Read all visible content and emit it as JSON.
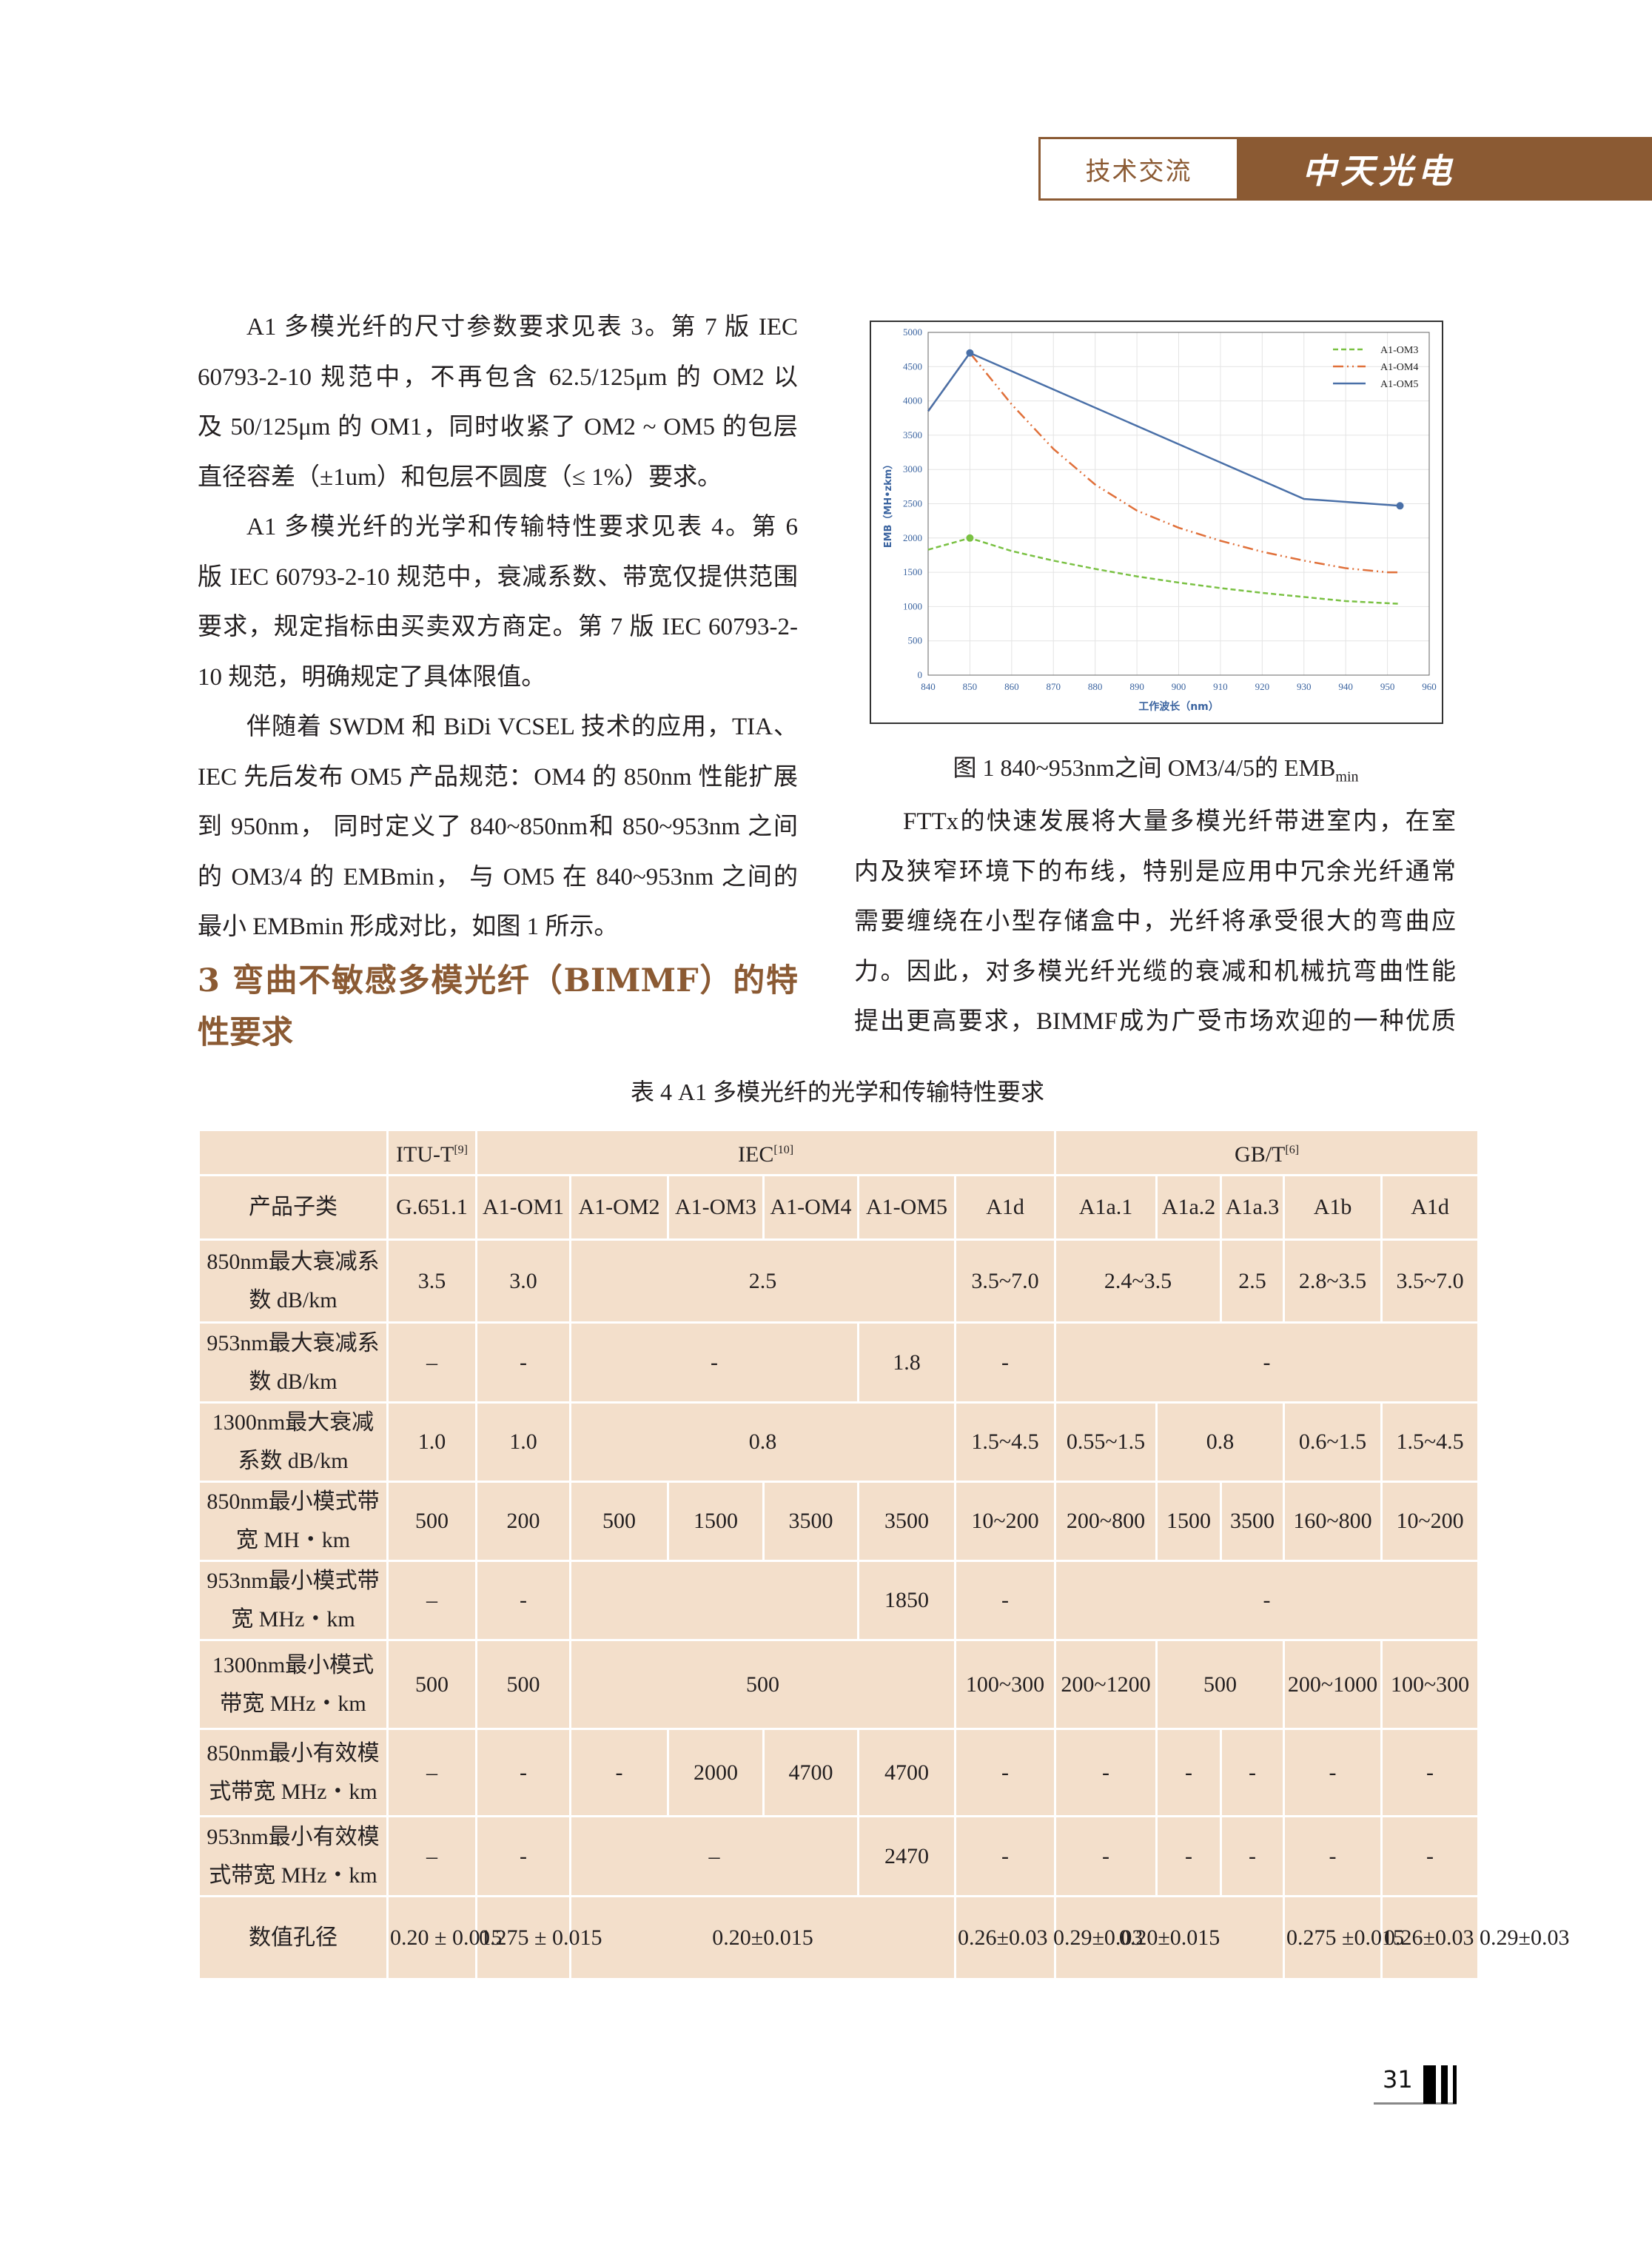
{
  "header": {
    "section_label": "技术交流",
    "logo_text": "中天光电",
    "brand_color": "#8b5a33"
  },
  "left_column": {
    "lines": [
      {
        "text": "A1 多模光纤的尺寸参数要求见表 3。第 7 版 IEC",
        "indent": true
      },
      {
        "text": "60793-2-10 规范中，不再包含 62.5/125μm 的 OM2 以"
      },
      {
        "text": "及 50/125μm 的 OM1，同时收紧了 OM2 ~ OM5 的包层"
      },
      {
        "text": "直径容差（±1um）和包层不圆度（≤ 1%）要求。",
        "last": true
      },
      {
        "text": "A1 多模光纤的光学和传输特性要求见表 4。第 6",
        "indent": true
      },
      {
        "text": "版 IEC 60793-2-10 规范中，衰减系数、带宽仅提供范围"
      },
      {
        "text": "要求，规定指标由买卖双方商定。第 7 版 IEC 60793-2-"
      },
      {
        "text": "10 规范，明确规定了具体限值。",
        "last": true
      },
      {
        "text": "伴随着 SWDM 和 BiDi VCSEL 技术的应用，TIA、",
        "indent": true
      },
      {
        "text": "IEC 先后发布 OM5 产品规范：OM4 的 850nm 性能扩展"
      },
      {
        "text": "到 950nm， 同时定义了 840~850nm和 850~953nm 之间"
      },
      {
        "text": "的 OM3/4 的 EMBmin， 与 OM5 在 840~953nm 之间的"
      },
      {
        "text": "最小 EMBmin 形成对比，如图 1 所示。",
        "last": true
      }
    ]
  },
  "section_heading": {
    "lines": [
      "3  弯曲不敏感多模光纤（BIMMF）的特",
      "性要求"
    ]
  },
  "right_column": {
    "lines": [
      {
        "text": "FTTx的快速发展将大量多模光纤带进室内，在室",
        "indent": true
      },
      {
        "text": "内及狭窄环境下的布线，特别是应用中冗余光纤通常"
      },
      {
        "text": "需要缠绕在小型存储盒中，光纤将承受很大的弯曲应"
      },
      {
        "text": "力。因此，对多模光纤光缆的衰减和机械抗弯曲性能"
      },
      {
        "text": "提出更高要求，BIMMF成为广受市场欢迎的一种优质"
      }
    ]
  },
  "figure": {
    "caption": "图 1  840~953nm之间 OM3/4/5的 EMB",
    "caption_sub": "min"
  },
  "chart_data": {
    "type": "line",
    "xlabel": "工作波长（nm）",
    "ylabel": "EMB（MH•zkm）",
    "xlim": [
      840,
      960
    ],
    "ylim": [
      0,
      5000
    ],
    "xticks": [
      "840",
      "850",
      "860",
      "870",
      "880",
      "890",
      "900",
      "910",
      "920",
      "930",
      "940",
      "950",
      "960"
    ],
    "yticks": [
      "0",
      "500",
      "1000",
      "1500",
      "2000",
      "2500",
      "3000",
      "3500",
      "4000",
      "4500",
      "5000"
    ],
    "grid": true,
    "legend": "top-right",
    "series": [
      {
        "name": "A1-OM3",
        "color": "#7ac143",
        "style": "dashed",
        "x": [
          840,
          850,
          860,
          870,
          880,
          890,
          900,
          910,
          920,
          930,
          940,
          953
        ],
        "y": [
          1830,
          2000,
          1810,
          1670,
          1550,
          1440,
          1350,
          1270,
          1200,
          1140,
          1080,
          1040
        ]
      },
      {
        "name": "A1-OM4",
        "color": "#e0703a",
        "style": "dash-dot-dot",
        "x": [
          840,
          850,
          860,
          870,
          880,
          890,
          900,
          910,
          920,
          930,
          940,
          950,
          953
        ],
        "y": [
          3850,
          4700,
          3950,
          3300,
          2780,
          2400,
          2150,
          1960,
          1800,
          1670,
          1560,
          1500,
          1500
        ]
      },
      {
        "name": "A1-OM5",
        "color": "#4a70a8",
        "style": "solid",
        "x": [
          840,
          850,
          930,
          953
        ],
        "y": [
          3850,
          4700,
          2570,
          2470
        ],
        "markers": [
          850,
          953
        ]
      }
    ],
    "om3_marker_x": 850
  },
  "table": {
    "caption": "表 4  A1 多模光纤的光学和传输特性要求",
    "rows": [
      [
        {
          "t": ""
        },
        {
          "t": "ITU-T",
          "sup": "[9]"
        },
        {
          "t": "IEC",
          "sup": "[10]",
          "cs": 6
        },
        {
          "t": "GB/T",
          "sup": "[6]",
          "cs": 5
        }
      ],
      [
        {
          "t": "产品子类"
        },
        {
          "t": "G.651.1"
        },
        {
          "t": "A1-OM1"
        },
        {
          "t": "A1-OM2"
        },
        {
          "t": "A1-OM3"
        },
        {
          "t": "A1-OM4"
        },
        {
          "t": "A1-OM5"
        },
        {
          "t": "A1d"
        },
        {
          "t": "A1a.1"
        },
        {
          "t": "A1a.2"
        },
        {
          "t": "A1a.3"
        },
        {
          "t": "A1b"
        },
        {
          "t": "A1d"
        }
      ],
      [
        {
          "t": "850nm最大衰减系数 dB/km"
        },
        {
          "t": "3.5"
        },
        {
          "t": "3.0"
        },
        {
          "t": "2.5",
          "cs": 4
        },
        {
          "t": "3.5~7.0"
        },
        {
          "t": "2.4~3.5",
          "cs": 2
        },
        {
          "t": "2.5"
        },
        {
          "t": "2.8~3.5"
        },
        {
          "t": "3.5~7.0"
        }
      ],
      [
        {
          "t": "953nm最大衰减系数 dB/km"
        },
        {
          "t": "–"
        },
        {
          "t": "-"
        },
        {
          "t": "-",
          "cs": 3
        },
        {
          "t": "1.8"
        },
        {
          "t": "-"
        },
        {
          "t": "-",
          "cs": 5
        }
      ],
      [
        {
          "t": "1300nm最大衰减系数 dB/km"
        },
        {
          "t": "1.0"
        },
        {
          "t": "1.0"
        },
        {
          "t": "0.8",
          "cs": 4
        },
        {
          "t": "1.5~4.5"
        },
        {
          "t": "0.55~1.5"
        },
        {
          "t": "0.8",
          "cs": 2
        },
        {
          "t": "0.6~1.5"
        },
        {
          "t": "1.5~4.5"
        }
      ],
      [
        {
          "t": "850nm最小模式带宽 MH・km"
        },
        {
          "t": "500"
        },
        {
          "t": "200"
        },
        {
          "t": "500"
        },
        {
          "t": "1500"
        },
        {
          "t": "3500"
        },
        {
          "t": "3500"
        },
        {
          "t": "10~200"
        },
        {
          "t": "200~800"
        },
        {
          "t": "1500"
        },
        {
          "t": "3500"
        },
        {
          "t": "160~800"
        },
        {
          "t": "10~200"
        }
      ],
      [
        {
          "t": "953nm最小模式带宽 MHz・km"
        },
        {
          "t": "–"
        },
        {
          "t": "-"
        },
        {
          "t": "",
          "cs": 3
        },
        {
          "t": "1850"
        },
        {
          "t": "-"
        },
        {
          "t": "-",
          "cs": 5
        }
      ],
      [
        {
          "t": "1300nm最小模式带宽 MHz・km"
        },
        {
          "t": "500"
        },
        {
          "t": "500"
        },
        {
          "t": "500",
          "cs": 4
        },
        {
          "t": "100~300"
        },
        {
          "t": "200~1200"
        },
        {
          "t": "500",
          "cs": 2
        },
        {
          "t": "200~1000"
        },
        {
          "t": "100~300"
        }
      ],
      [
        {
          "t": "850nm最小有效模式带宽 MHz・km"
        },
        {
          "t": "–"
        },
        {
          "t": "-"
        },
        {
          "t": "-"
        },
        {
          "t": "2000"
        },
        {
          "t": "4700"
        },
        {
          "t": "4700"
        },
        {
          "t": "-"
        },
        {
          "t": "-"
        },
        {
          "t": "-"
        },
        {
          "t": "-"
        },
        {
          "t": "-"
        },
        {
          "t": "-"
        }
      ],
      [
        {
          "t": "953nm最小有效模式带宽 MHz・km"
        },
        {
          "t": "–"
        },
        {
          "t": "-"
        },
        {
          "t": "–",
          "cs": 3
        },
        {
          "t": "2470"
        },
        {
          "t": "-"
        },
        {
          "t": "-"
        },
        {
          "t": "-"
        },
        {
          "t": "-"
        },
        {
          "t": "-"
        },
        {
          "t": "-"
        }
      ],
      [
        {
          "t": "数值孔径"
        },
        {
          "t": "0.20 ± 0.015"
        },
        {
          "t": "0.275 ± 0.015"
        },
        {
          "t": "0.20±0.015",
          "cs": 4
        },
        {
          "t": "0.26±0.03 0.29±0.03"
        },
        {
          "t": "0.20±0.015",
          "cs": 3
        },
        {
          "t": "0.275 ±0.015"
        },
        {
          "t": "0.26±0.03 0.29±0.03"
        }
      ]
    ]
  },
  "footer": {
    "page_number": "31"
  }
}
